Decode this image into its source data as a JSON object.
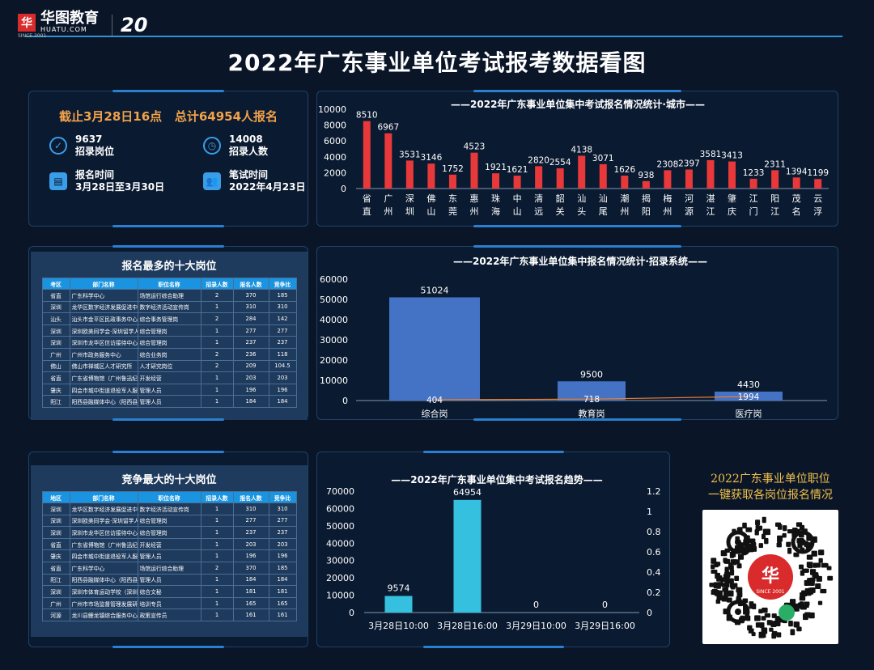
{
  "brand": {
    "name_cn": "华图教育",
    "name_en": "HUATU.COM",
    "since": "SINCE 2001",
    "anniv": "20"
  },
  "page_title": "2022年广东事业单位考试报考数据看图",
  "summary": {
    "headline": "截止3月28日16点   总计64954人报名",
    "items": [
      {
        "value": "9637",
        "label": "招录岗位",
        "icon": "check-circle-icon"
      },
      {
        "value": "14008",
        "label": "招录人数",
        "icon": "clock-icon"
      },
      {
        "value": "报名时间",
        "label": "3月28日至3月30日",
        "icon": "store-icon"
      },
      {
        "value": "笔试时间",
        "label": "2022年4月23日",
        "icon": "people-icon"
      }
    ]
  },
  "table1": {
    "title": "报名最多的十大岗位",
    "headers": [
      "考区",
      "部门名称",
      "职位名称",
      "招录人数",
      "报名人数",
      "竞争比"
    ],
    "rows": [
      [
        "省直",
        "广东科学中心",
        "场馆运行综合助理",
        "2",
        "370",
        "185"
      ],
      [
        "深圳",
        "龙华区数字经济发展促进中",
        "数字经济活动宣传岗",
        "1",
        "310",
        "310"
      ],
      [
        "汕头",
        "汕头市金平区民政事务中心",
        "综合事务管理岗",
        "2",
        "284",
        "142"
      ],
      [
        "深圳",
        "深圳欧美同学会·深圳留学人",
        "综合管理岗",
        "1",
        "277",
        "277"
      ],
      [
        "深圳",
        "深圳市龙华区信访接待中心",
        "综合管理岗",
        "1",
        "237",
        "237"
      ],
      [
        "广州",
        "广州市政务服务中心",
        "综合业务岗",
        "2",
        "236",
        "118"
      ],
      [
        "佛山",
        "佛山市禅城区人才研究所",
        "人才研究岗位",
        "2",
        "209",
        "104.5"
      ],
      [
        "省直",
        "广东省博物馆（广州鲁迅纪",
        "开发经营",
        "1",
        "203",
        "203"
      ],
      [
        "肇庆",
        "四会市城中街道退役军人服",
        "管理人员",
        "1",
        "196",
        "196"
      ],
      [
        "阳江",
        "阳西县融媒体中心（阳西县",
        "管理人员",
        "1",
        "184",
        "184"
      ]
    ]
  },
  "table2": {
    "title": "竞争最大的十大岗位",
    "headers": [
      "地区",
      "部门名称",
      "职位名称",
      "招录人数",
      "报名人数",
      "竞争比"
    ],
    "rows": [
      [
        "深圳",
        "龙华区数字经济发展促进中",
        "数字经济活动宣传岗",
        "1",
        "310",
        "310"
      ],
      [
        "深圳",
        "深圳欧美同学会·深圳留学人",
        "综合管理岗",
        "1",
        "277",
        "277"
      ],
      [
        "深圳",
        "深圳市龙华区信访接待中心",
        "综合管理岗",
        "1",
        "237",
        "237"
      ],
      [
        "省直",
        "广东省博物馆（广州鲁迅纪",
        "开发经营",
        "1",
        "203",
        "203"
      ],
      [
        "肇庆",
        "四会市城中街道退役军人服",
        "管理人员",
        "1",
        "196",
        "196"
      ],
      [
        "省直",
        "广东科学中心",
        "场馆运行综合助理",
        "2",
        "370",
        "185"
      ],
      [
        "阳江",
        "阳西县融媒体中心（阳西县",
        "管理人员",
        "1",
        "184",
        "184"
      ],
      [
        "深圳",
        "深圳市体育运动学校（深圳",
        "综合文秘",
        "1",
        "181",
        "181"
      ],
      [
        "广州",
        "广州市市场监督管理发展研",
        "培训专员",
        "1",
        "165",
        "165"
      ],
      [
        "河源",
        "龙川县鲤龙镇综合服务中心",
        "政策宣传员",
        "1",
        "161",
        "161"
      ]
    ]
  },
  "qr": {
    "line1": "2022广东事业单位职位",
    "line2": "一键获取各岗位报名情况",
    "center": "SINCE 2001"
  },
  "chart_data": [
    {
      "type": "bar",
      "title": "——2022年广东事业单位集中考试报名情况统计·城市——",
      "categories": [
        "省直",
        "广州",
        "深圳",
        "佛山",
        "东莞",
        "惠州",
        "珠海",
        "中山",
        "清远",
        "韶关",
        "汕头",
        "汕尾",
        "潮州",
        "揭阳",
        "梅州",
        "河源",
        "湛江",
        "肇庆",
        "江门",
        "阳江",
        "茂名",
        "云浮"
      ],
      "values": [
        8510,
        6967,
        3531,
        3146,
        1752,
        4523,
        1921,
        1621,
        2820,
        2554,
        4138,
        3071,
        1626,
        938,
        2308,
        2397,
        3581,
        3413,
        1233,
        2311,
        1394,
        1199
      ],
      "yticks": [
        "0",
        "2000",
        "4000",
        "6000",
        "8000",
        "10000"
      ],
      "ylim": [
        0,
        10000
      ],
      "color": "#e8393a"
    },
    {
      "type": "bar",
      "title": "——2022年广东事业单位集中报名情况统计·招录系统——",
      "categories": [
        "综合岗",
        "教育岗",
        "医疗岗"
      ],
      "values": [
        51024,
        9500,
        4430
      ],
      "line_values": [
        404,
        718,
        1994
      ],
      "yticks": [
        "0",
        "10000",
        "20000",
        "30000",
        "40000",
        "50000",
        "60000"
      ],
      "ylim": [
        0,
        60000
      ],
      "color": "#4472c4",
      "line_color": "#ed7d31"
    },
    {
      "type": "bar",
      "title": "——2022年广东事业单位集中考试报名趋势——",
      "categories": [
        "3月28日10:00",
        "3月28日16:00",
        "3月29日10:00",
        "3月29日16:00"
      ],
      "values": [
        9574,
        64954,
        0,
        0
      ],
      "yticks": [
        "0",
        "10000",
        "20000",
        "30000",
        "40000",
        "50000",
        "60000",
        "70000"
      ],
      "ylim": [
        0,
        70000
      ],
      "y2ticks": [
        "0",
        "0.2",
        "0.4",
        "0.6",
        "0.8",
        "1",
        "1.2"
      ],
      "color": "#36c0e0"
    }
  ]
}
